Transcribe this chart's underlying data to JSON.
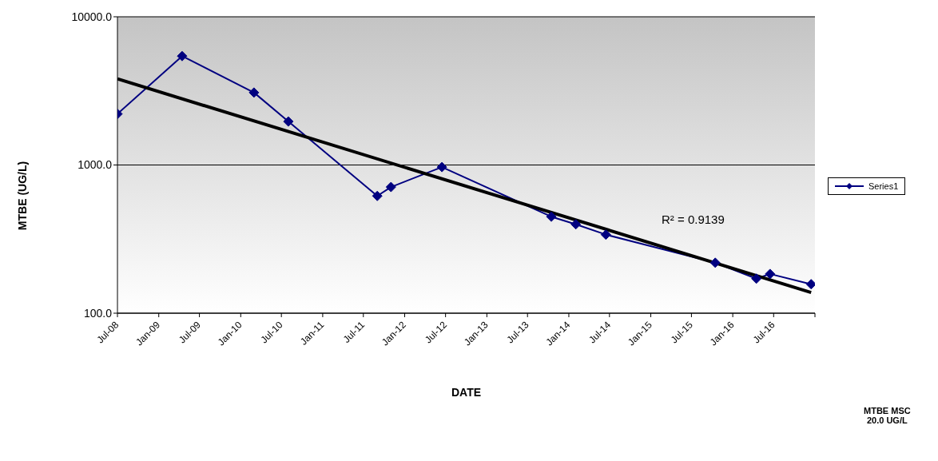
{
  "chart_data": {
    "type": "line",
    "xlabel": "DATE",
    "ylabel": "MTBE (UG/L)",
    "x": [
      "2008-07-01",
      "2009-04-15",
      "2010-03-01",
      "2010-08-01",
      "2011-09-01",
      "2011-11-01",
      "2012-06-15",
      "2013-10-15",
      "2014-02-01",
      "2014-06-15",
      "2015-10-15",
      "2016-04-15",
      "2016-06-15",
      "2016-12-15"
    ],
    "series": [
      {
        "name": "Series1",
        "color": "#000080",
        "marker": "diamond",
        "values": [
          2210,
          5430,
          3080,
          1965,
          618,
          710,
          968,
          448,
          398,
          339,
          219,
          171,
          184,
          157
        ]
      },
      {
        "type": "line",
        "color": "#000000",
        "marker": "none",
        "x": [
          "2008-07-01",
          "2016-12-15"
        ],
        "values": [
          3810,
          138
        ]
      }
    ],
    "log": "y",
    "xlim": [
      "2008-07-01",
      "2017-01-01"
    ],
    "xticks": [
      {
        "value": "2008-07-01",
        "label": "Jul-08"
      },
      {
        "value": "2009-01-01",
        "label": "Jan-09"
      },
      {
        "value": "2009-07-01",
        "label": "Jul-09"
      },
      {
        "value": "2010-01-01",
        "label": "Jan-10"
      },
      {
        "value": "2010-07-01",
        "label": "Jul-10"
      },
      {
        "value": "2011-01-01",
        "label": "Jan-11"
      },
      {
        "value": "2011-07-01",
        "label": "Jul-11"
      },
      {
        "value": "2012-01-01",
        "label": "Jan-12"
      },
      {
        "value": "2012-07-01",
        "label": "Jul-12"
      },
      {
        "value": "2013-01-01",
        "label": "Jan-13"
      },
      {
        "value": "2013-07-01",
        "label": "Jul-13"
      },
      {
        "value": "2014-01-01",
        "label": "Jan-14"
      },
      {
        "value": "2014-07-01",
        "label": "Jul-14"
      },
      {
        "value": "2015-01-01",
        "label": "Jan-15"
      },
      {
        "value": "2015-07-01",
        "label": "Jul-15"
      },
      {
        "value": "2016-01-01",
        "label": "Jan-16"
      },
      {
        "value": "2016-07-01",
        "label": "Jul-16"
      },
      {
        "value": "2017-01-01",
        "label": null
      }
    ],
    "ylim": [
      100,
      10000
    ],
    "yticks": [
      {
        "value": 100,
        "label": "100.0"
      },
      {
        "value": 1000,
        "label": "1000.0"
      },
      {
        "value": 10000,
        "label": "10000.0"
      }
    ],
    "grid": "y",
    "legend": "right",
    "annotations": [
      "R² = 0.9139",
      "MTBE MSC\n20.0 UG/L"
    ]
  }
}
